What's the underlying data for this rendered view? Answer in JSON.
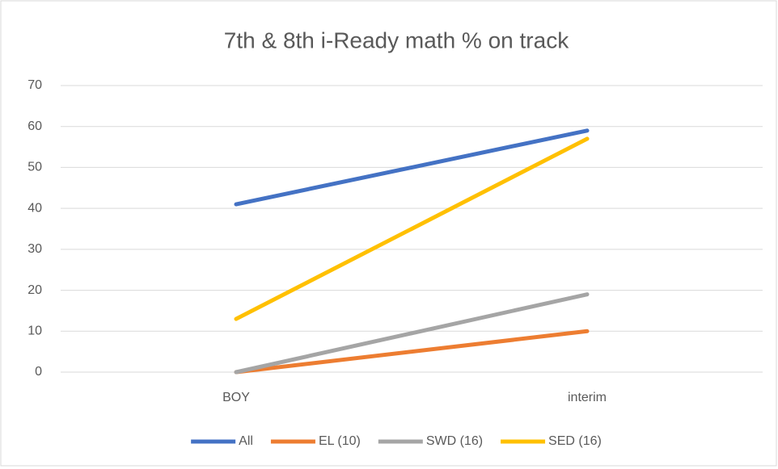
{
  "chart_data": {
    "type": "line",
    "title": "7th & 8th i-Ready math % on track",
    "categories": [
      "BOY",
      "interim"
    ],
    "series": [
      {
        "name": "All",
        "color": "#4472c4",
        "values": [
          41,
          59
        ]
      },
      {
        "name": "EL (10)",
        "color": "#ed7d31",
        "values": [
          0,
          10
        ]
      },
      {
        "name": "SWD (16)",
        "color": "#a5a5a5",
        "values": [
          0,
          19
        ]
      },
      {
        "name": "SED (16)",
        "color": "#ffc000",
        "values": [
          13,
          57
        ]
      }
    ],
    "ylim": [
      0,
      70
    ],
    "yticks": [
      0,
      10,
      20,
      30,
      40,
      50,
      60,
      70
    ],
    "grid": true,
    "legend": "bottom"
  }
}
